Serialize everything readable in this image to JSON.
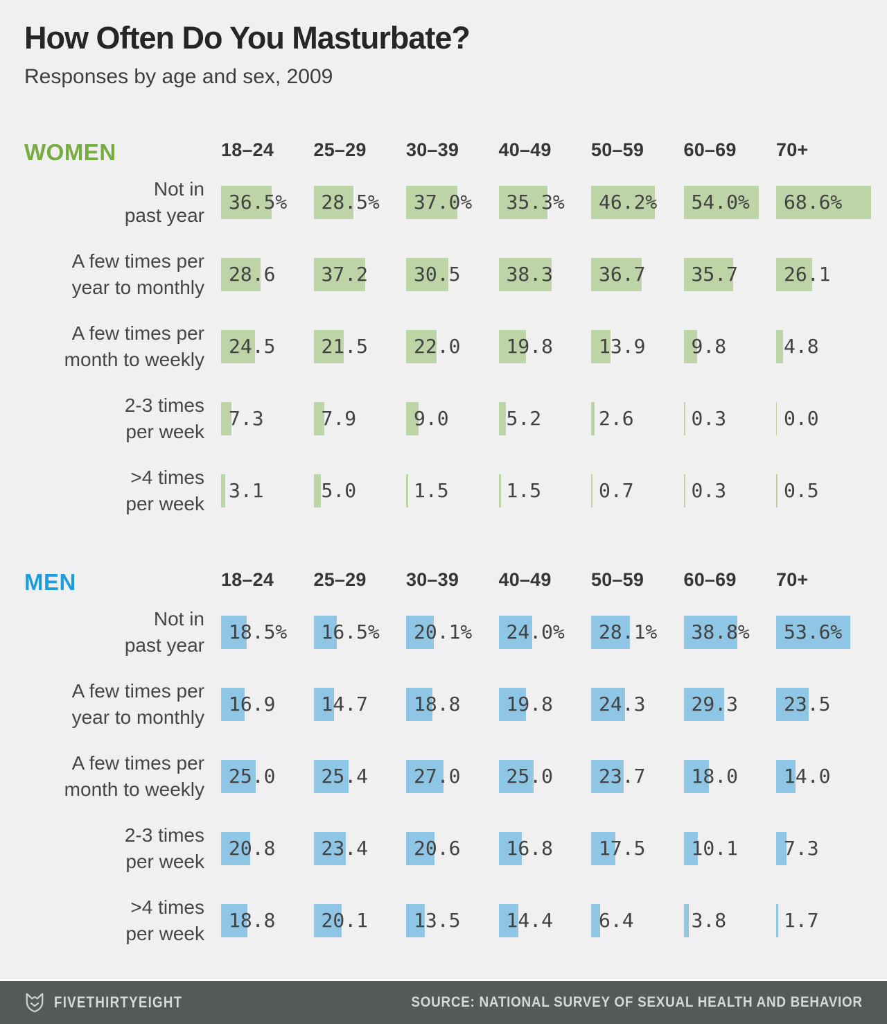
{
  "title": "How Often Do You Masturbate?",
  "subtitle": "Responses by age and sex, 2009",
  "footer": {
    "brand": "FIVETHIRTYEIGHT",
    "source": "SOURCE: NATIONAL SURVEY OF SEXUAL HEALTH AND BEHAVIOR"
  },
  "colors": {
    "background": "#f0f0f0",
    "women_accent": "#77ab43",
    "women_bar": "#bdd4a7",
    "men_accent": "#1d9ddb",
    "men_bar": "#8fc6e6",
    "footer_background": "#565959"
  },
  "chart_data": {
    "type": "bar",
    "orientation": "horizontal",
    "unit": "%",
    "title": "How Often Do You Masturbate?",
    "subtitle": "Responses by age and sex, 2009",
    "age_groups": [
      "18–24",
      "25–29",
      "30–39",
      "40–49",
      "50–59",
      "60–69",
      "70+"
    ],
    "frequency_categories": [
      "Not in past year",
      "A few times per year to monthly",
      "A few times per month to weekly",
      "2-3 times per week",
      ">4 times per week"
    ],
    "value_range": [
      0,
      68.6
    ],
    "groups": [
      {
        "name": "WOMEN",
        "accent_color": "#77ab43",
        "bar_color": "#bdd4a7",
        "rows": [
          {
            "label_lines": [
              "Not in",
              "past year"
            ],
            "suffix": "%",
            "values": [
              36.5,
              28.5,
              37.0,
              35.3,
              46.2,
              54.0,
              68.6
            ]
          },
          {
            "label_lines": [
              "A few times per",
              "year to monthly"
            ],
            "suffix": "",
            "values": [
              28.6,
              37.2,
              30.5,
              38.3,
              36.7,
              35.7,
              26.1
            ]
          },
          {
            "label_lines": [
              "A few times per",
              "month to weekly"
            ],
            "suffix": "",
            "values": [
              24.5,
              21.5,
              22.0,
              19.8,
              13.9,
              9.8,
              4.8
            ]
          },
          {
            "label_lines": [
              "2-3 times",
              "per week"
            ],
            "suffix": "",
            "values": [
              7.3,
              7.9,
              9.0,
              5.2,
              2.6,
              0.3,
              0.0
            ]
          },
          {
            "label_lines": [
              ">4 times",
              "per week"
            ],
            "suffix": "",
            "values": [
              3.1,
              5.0,
              1.5,
              1.5,
              0.7,
              0.3,
              0.5
            ]
          }
        ]
      },
      {
        "name": "MEN",
        "accent_color": "#1d9ddb",
        "bar_color": "#8fc6e6",
        "rows": [
          {
            "label_lines": [
              "Not in",
              "past year"
            ],
            "suffix": "%",
            "values": [
              18.5,
              16.5,
              20.1,
              24.0,
              28.1,
              38.8,
              53.6
            ]
          },
          {
            "label_lines": [
              "A few times per",
              "year to monthly"
            ],
            "suffix": "",
            "values": [
              16.9,
              14.7,
              18.8,
              19.8,
              24.3,
              29.3,
              23.5
            ]
          },
          {
            "label_lines": [
              "A few times per",
              "month to weekly"
            ],
            "suffix": "",
            "values": [
              25.0,
              25.4,
              27.0,
              25.0,
              23.7,
              18.0,
              14.0
            ]
          },
          {
            "label_lines": [
              "2-3 times",
              "per week"
            ],
            "suffix": "",
            "values": [
              20.8,
              23.4,
              20.6,
              16.8,
              17.5,
              10.1,
              7.3
            ]
          },
          {
            "label_lines": [
              ">4 times",
              "per week"
            ],
            "suffix": "",
            "values": [
              18.8,
              20.1,
              13.5,
              14.4,
              6.4,
              3.8,
              1.7
            ]
          }
        ]
      }
    ]
  }
}
